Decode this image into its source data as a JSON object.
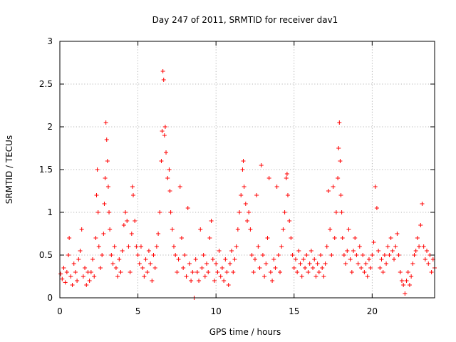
{
  "chart_data": {
    "type": "scatter",
    "title": "Day 247 of 2011, SRMTID for receiver dav1",
    "xlabel": "GPS time / hours",
    "ylabel": "SRMTID / TECUs",
    "xlim": [
      0,
      24
    ],
    "ylim": [
      0,
      3
    ],
    "x_ticks": [
      0,
      5,
      10,
      15,
      20
    ],
    "x_tick_labels": [
      "0",
      "5",
      "10",
      "15",
      "20"
    ],
    "y_ticks": [
      0,
      0.5,
      1,
      1.5,
      2,
      2.5,
      3
    ],
    "y_tick_labels": [
      "0",
      "0.5",
      "1",
      "1.5",
      "2",
      "2.5",
      "3"
    ],
    "grid": true,
    "marker": "+",
    "color": "#ff0000",
    "series": [
      {
        "name": "SRMTID",
        "points": [
          [
            0.05,
            0.28
          ],
          [
            0.15,
            0.22
          ],
          [
            0.25,
            0.35
          ],
          [
            0.35,
            0.18
          ],
          [
            0.45,
            0.3
          ],
          [
            0.55,
            0.5
          ],
          [
            0.6,
            0.7
          ],
          [
            0.7,
            0.25
          ],
          [
            0.8,
            0.15
          ],
          [
            0.9,
            0.4
          ],
          [
            1.0,
            0.3
          ],
          [
            1.1,
            0.2
          ],
          [
            1.2,
            0.45
          ],
          [
            1.3,
            0.55
          ],
          [
            1.4,
            0.8
          ],
          [
            1.5,
            0.25
          ],
          [
            1.6,
            0.35
          ],
          [
            1.7,
            0.15
          ],
          [
            1.8,
            0.3
          ],
          [
            1.9,
            0.2
          ],
          [
            2.0,
            0.3
          ],
          [
            2.1,
            0.45
          ],
          [
            2.2,
            0.25
          ],
          [
            2.3,
            0.7
          ],
          [
            2.35,
            1.2
          ],
          [
            2.4,
            1.5
          ],
          [
            2.45,
            1.0
          ],
          [
            2.5,
            0.6
          ],
          [
            2.6,
            0.35
          ],
          [
            2.7,
            0.5
          ],
          [
            2.8,
            0.75
          ],
          [
            2.85,
            1.1
          ],
          [
            2.9,
            1.4
          ],
          [
            2.95,
            2.05
          ],
          [
            3.0,
            1.85
          ],
          [
            3.05,
            1.6
          ],
          [
            3.1,
            1.3
          ],
          [
            3.15,
            1.0
          ],
          [
            3.2,
            0.8
          ],
          [
            3.3,
            0.5
          ],
          [
            3.4,
            0.4
          ],
          [
            3.5,
            0.6
          ],
          [
            3.6,
            0.35
          ],
          [
            3.7,
            0.25
          ],
          [
            3.8,
            0.45
          ],
          [
            3.9,
            0.3
          ],
          [
            4.0,
            0.55
          ],
          [
            4.1,
            0.85
          ],
          [
            4.2,
            1.0
          ],
          [
            4.3,
            0.9
          ],
          [
            4.4,
            0.6
          ],
          [
            4.5,
            0.3
          ],
          [
            4.6,
            0.75
          ],
          [
            4.65,
            1.3
          ],
          [
            4.7,
            1.2
          ],
          [
            4.8,
            0.9
          ],
          [
            4.9,
            0.6
          ],
          [
            5.0,
            0.5
          ],
          [
            5.1,
            0.4
          ],
          [
            5.2,
            0.6
          ],
          [
            5.3,
            0.35
          ],
          [
            5.4,
            0.25
          ],
          [
            5.5,
            0.45
          ],
          [
            5.6,
            0.3
          ],
          [
            5.7,
            0.55
          ],
          [
            5.8,
            0.4
          ],
          [
            5.9,
            0.2
          ],
          [
            6.0,
            0.5
          ],
          [
            6.1,
            0.35
          ],
          [
            6.2,
            0.6
          ],
          [
            6.3,
            0.75
          ],
          [
            6.4,
            1.0
          ],
          [
            6.5,
            1.6
          ],
          [
            6.55,
            1.95
          ],
          [
            6.6,
            2.65
          ],
          [
            6.65,
            2.55
          ],
          [
            6.7,
            1.9
          ],
          [
            6.75,
            2.0
          ],
          [
            6.8,
            1.7
          ],
          [
            6.9,
            1.4
          ],
          [
            7.0,
            1.5
          ],
          [
            7.05,
            1.25
          ],
          [
            7.1,
            1.0
          ],
          [
            7.2,
            0.8
          ],
          [
            7.3,
            0.6
          ],
          [
            7.4,
            0.5
          ],
          [
            7.5,
            0.3
          ],
          [
            7.6,
            0.45
          ],
          [
            7.7,
            1.3
          ],
          [
            7.8,
            0.7
          ],
          [
            7.9,
            0.35
          ],
          [
            8.0,
            0.5
          ],
          [
            8.1,
            0.25
          ],
          [
            8.2,
            1.05
          ],
          [
            8.3,
            0.4
          ],
          [
            8.4,
            0.2
          ],
          [
            8.5,
            0.3
          ],
          [
            8.6,
            0.0
          ],
          [
            8.7,
            0.45
          ],
          [
            8.8,
            0.3
          ],
          [
            8.9,
            0.2
          ],
          [
            9.0,
            0.8
          ],
          [
            9.1,
            0.35
          ],
          [
            9.2,
            0.5
          ],
          [
            9.3,
            0.25
          ],
          [
            9.4,
            0.4
          ],
          [
            9.5,
            0.3
          ],
          [
            9.6,
            0.7
          ],
          [
            9.7,
            0.9
          ],
          [
            9.8,
            0.45
          ],
          [
            9.9,
            0.2
          ],
          [
            10.0,
            0.4
          ],
          [
            10.1,
            0.3
          ],
          [
            10.2,
            0.55
          ],
          [
            10.3,
            0.25
          ],
          [
            10.4,
            0.35
          ],
          [
            10.5,
            0.2
          ],
          [
            10.6,
            0.45
          ],
          [
            10.7,
            0.3
          ],
          [
            10.8,
            0.15
          ],
          [
            10.9,
            0.4
          ],
          [
            11.0,
            0.55
          ],
          [
            11.1,
            0.3
          ],
          [
            11.2,
            0.45
          ],
          [
            11.3,
            0.6
          ],
          [
            11.4,
            0.8
          ],
          [
            11.5,
            1.0
          ],
          [
            11.6,
            1.2
          ],
          [
            11.7,
            1.5
          ],
          [
            11.75,
            1.6
          ],
          [
            11.8,
            1.3
          ],
          [
            11.9,
            1.1
          ],
          [
            12.0,
            0.9
          ],
          [
            12.1,
            1.0
          ],
          [
            12.2,
            0.8
          ],
          [
            12.3,
            0.5
          ],
          [
            12.4,
            0.3
          ],
          [
            12.5,
            0.45
          ],
          [
            12.6,
            1.2
          ],
          [
            12.7,
            0.6
          ],
          [
            12.8,
            0.35
          ],
          [
            12.9,
            1.55
          ],
          [
            13.0,
            0.5
          ],
          [
            13.1,
            0.25
          ],
          [
            13.2,
            0.4
          ],
          [
            13.3,
            0.7
          ],
          [
            13.4,
            1.4
          ],
          [
            13.5,
            0.3
          ],
          [
            13.6,
            0.2
          ],
          [
            13.7,
            0.45
          ],
          [
            13.8,
            0.35
          ],
          [
            13.9,
            1.3
          ],
          [
            14.0,
            0.5
          ],
          [
            14.1,
            0.3
          ],
          [
            14.2,
            0.6
          ],
          [
            14.3,
            0.8
          ],
          [
            14.4,
            1.0
          ],
          [
            14.5,
            1.4
          ],
          [
            14.55,
            1.45
          ],
          [
            14.6,
            1.2
          ],
          [
            14.7,
            0.9
          ],
          [
            14.8,
            0.7
          ],
          [
            14.9,
            0.5
          ],
          [
            15.0,
            0.35
          ],
          [
            15.1,
            0.45
          ],
          [
            15.2,
            0.3
          ],
          [
            15.3,
            0.55
          ],
          [
            15.4,
            0.4
          ],
          [
            15.5,
            0.25
          ],
          [
            15.6,
            0.45
          ],
          [
            15.7,
            0.35
          ],
          [
            15.8,
            0.5
          ],
          [
            15.9,
            0.3
          ],
          [
            16.0,
            0.4
          ],
          [
            16.1,
            0.55
          ],
          [
            16.2,
            0.35
          ],
          [
            16.3,
            0.45
          ],
          [
            16.4,
            0.25
          ],
          [
            16.5,
            0.4
          ],
          [
            16.6,
            0.3
          ],
          [
            16.7,
            0.5
          ],
          [
            16.8,
            0.35
          ],
          [
            16.9,
            0.25
          ],
          [
            17.0,
            0.4
          ],
          [
            17.1,
            0.6
          ],
          [
            17.2,
            1.25
          ],
          [
            17.3,
            0.8
          ],
          [
            17.4,
            0.5
          ],
          [
            17.5,
            1.3
          ],
          [
            17.6,
            0.7
          ],
          [
            17.7,
            1.0
          ],
          [
            17.8,
            1.4
          ],
          [
            17.85,
            1.75
          ],
          [
            17.9,
            2.05
          ],
          [
            17.95,
            1.6
          ],
          [
            18.0,
            1.2
          ],
          [
            18.05,
            1.0
          ],
          [
            18.1,
            0.7
          ],
          [
            18.2,
            0.5
          ],
          [
            18.3,
            0.4
          ],
          [
            18.4,
            0.55
          ],
          [
            18.5,
            0.8
          ],
          [
            18.6,
            0.45
          ],
          [
            18.7,
            0.3
          ],
          [
            18.8,
            0.55
          ],
          [
            18.9,
            0.7
          ],
          [
            19.0,
            0.5
          ],
          [
            19.1,
            0.4
          ],
          [
            19.2,
            0.6
          ],
          [
            19.3,
            0.35
          ],
          [
            19.4,
            0.5
          ],
          [
            19.5,
            0.3
          ],
          [
            19.6,
            0.4
          ],
          [
            19.7,
            0.25
          ],
          [
            19.8,
            0.45
          ],
          [
            19.9,
            0.35
          ],
          [
            20.0,
            0.5
          ],
          [
            20.1,
            0.65
          ],
          [
            20.2,
            1.3
          ],
          [
            20.3,
            1.05
          ],
          [
            20.4,
            0.55
          ],
          [
            20.5,
            0.35
          ],
          [
            20.6,
            0.45
          ],
          [
            20.7,
            0.3
          ],
          [
            20.8,
            0.5
          ],
          [
            20.9,
            0.4
          ],
          [
            21.0,
            0.6
          ],
          [
            21.1,
            0.5
          ],
          [
            21.2,
            0.7
          ],
          [
            21.3,
            0.55
          ],
          [
            21.4,
            0.45
          ],
          [
            21.5,
            0.6
          ],
          [
            21.6,
            0.75
          ],
          [
            21.7,
            0.5
          ],
          [
            21.8,
            0.3
          ],
          [
            21.9,
            0.2
          ],
          [
            22.0,
            0.15
          ],
          [
            22.1,
            0.05
          ],
          [
            22.2,
            0.2
          ],
          [
            22.3,
            0.3
          ],
          [
            22.4,
            0.15
          ],
          [
            22.5,
            0.25
          ],
          [
            22.6,
            0.4
          ],
          [
            22.7,
            0.5
          ],
          [
            22.8,
            0.55
          ],
          [
            22.9,
            0.7
          ],
          [
            23.0,
            0.6
          ],
          [
            23.1,
            0.85
          ],
          [
            23.2,
            1.1
          ],
          [
            23.3,
            0.6
          ],
          [
            23.4,
            0.45
          ],
          [
            23.5,
            0.55
          ],
          [
            23.6,
            0.4
          ],
          [
            23.7,
            0.5
          ],
          [
            23.8,
            0.3
          ],
          [
            23.9,
            0.45
          ],
          [
            24.0,
            0.35
          ]
        ]
      }
    ]
  }
}
